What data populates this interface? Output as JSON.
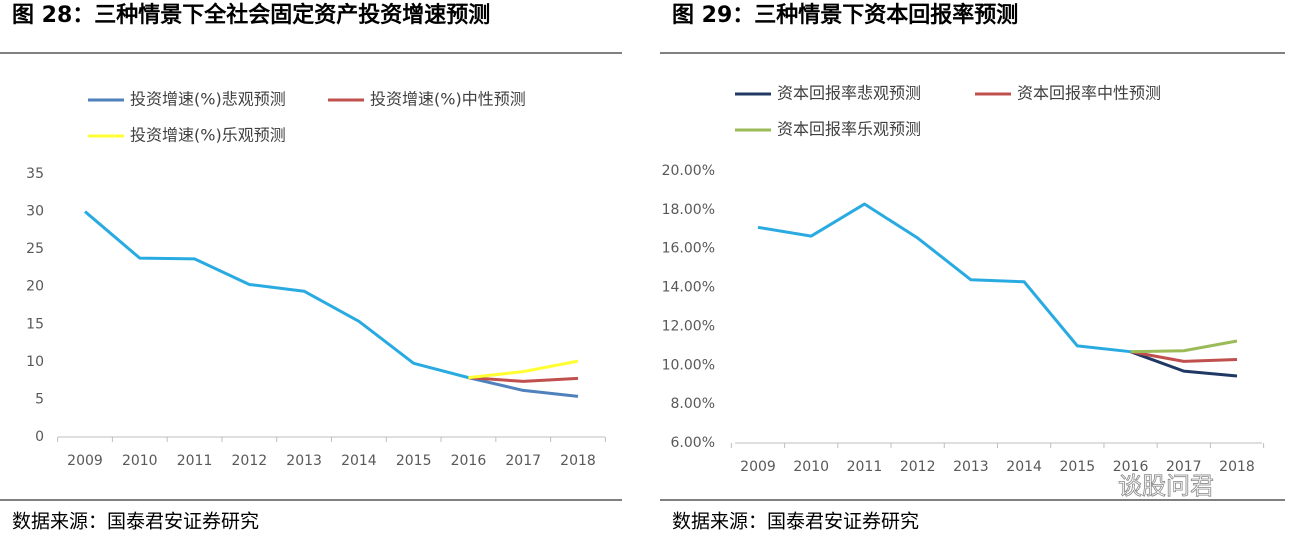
{
  "chart_data": [
    {
      "type": "line",
      "title": "图 28：三种情景下全社会固定资产投资增速预测",
      "source": "数据来源：国泰君安证券研究",
      "categories": [
        "2009",
        "2010",
        "2011",
        "2012",
        "2013",
        "2014",
        "2015",
        "2016",
        "2017",
        "2018"
      ],
      "ylim": [
        0,
        35
      ],
      "yticks": [
        0,
        5,
        10,
        15,
        20,
        25,
        30,
        35
      ],
      "grid": false,
      "series": [
        {
          "color": "#29abe2",
          "values": [
            30,
            23.8,
            23.7,
            20.3,
            19.4,
            15.4,
            9.8,
            7.9,
            null,
            null
          ]
        },
        {
          "name": "投资增速(%)悲观预测",
          "color": "#4f81bd",
          "values": [
            null,
            null,
            null,
            null,
            null,
            null,
            null,
            7.9,
            6.2,
            5.4
          ]
        },
        {
          "name": "投资增速(%)中性预测",
          "color": "#c0504d",
          "values": [
            null,
            null,
            null,
            null,
            null,
            null,
            null,
            7.9,
            7.4,
            7.8
          ]
        },
        {
          "name": "投资增速(%)乐观预测",
          "color": "#ffff33",
          "values": [
            null,
            null,
            null,
            null,
            null,
            null,
            null,
            7.9,
            8.7,
            10.1
          ]
        }
      ]
    },
    {
      "type": "line",
      "title": "图 29：三种情景下资本回报率预测",
      "source": "数据来源：国泰君安证券研究",
      "watermark": "谈股问君",
      "categories": [
        "2009",
        "2010",
        "2011",
        "2012",
        "2013",
        "2014",
        "2015",
        "2016",
        "2017",
        "2018"
      ],
      "ylim": [
        6,
        20
      ],
      "yticks": [
        {
          "value": 6,
          "label": "6.00%"
        },
        {
          "value": 8,
          "label": "8.00%"
        },
        {
          "value": 10,
          "label": "10.00%"
        },
        {
          "value": 12,
          "label": "12.00%"
        },
        {
          "value": 14,
          "label": "14.00%"
        },
        {
          "value": 16,
          "label": "16.00%"
        },
        {
          "value": 18,
          "label": "18.00%"
        },
        {
          "value": 20,
          "label": "20.00%"
        }
      ],
      "grid": false,
      "series": [
        {
          "color": "#29abe2",
          "values": [
            17.1,
            16.65,
            18.3,
            16.55,
            14.4,
            14.3,
            11.0,
            10.7,
            null,
            null
          ]
        },
        {
          "name": "资本回报率悲观预测",
          "color": "#1f3864",
          "values": [
            null,
            null,
            null,
            null,
            null,
            null,
            null,
            10.7,
            9.7,
            9.45
          ]
        },
        {
          "name": "资本回报率中性预测",
          "color": "#c0504d",
          "values": [
            null,
            null,
            null,
            null,
            null,
            null,
            null,
            10.7,
            10.2,
            10.3
          ]
        },
        {
          "name": "资本回报率乐观预测",
          "color": "#9bbb59",
          "values": [
            null,
            null,
            null,
            null,
            null,
            null,
            null,
            10.7,
            10.75,
            11.25
          ]
        }
      ]
    }
  ]
}
